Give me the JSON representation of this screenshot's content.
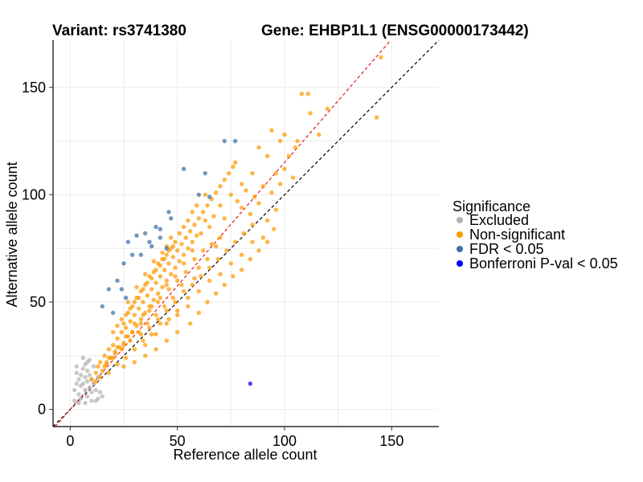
{
  "header": {
    "variant": "Variant: rs3741380",
    "gene": "Gene: EHBP1L1 (ENSG00000173442)"
  },
  "chart_data": {
    "type": "scatter",
    "xlabel": "Reference allele count",
    "ylabel": "Alternative allele count",
    "xlim": [
      -8,
      172
    ],
    "ylim": [
      -8,
      172
    ],
    "x_ticks": [
      0,
      50,
      100,
      150
    ],
    "y_ticks": [
      0,
      50,
      100,
      150
    ],
    "x_tick_labels": [
      "0",
      "50",
      "100",
      "150"
    ],
    "y_tick_labels": [
      "0",
      "50",
      "100",
      "150"
    ],
    "grid": true,
    "legend": {
      "title": "Significance",
      "position": "right",
      "entries": [
        {
          "label": "Excluded",
          "color": "#b3b3b3"
        },
        {
          "label": "Non-significant",
          "color": "#ff9900"
        },
        {
          "label": "FDR < 0.05",
          "color": "#3b6fa8"
        },
        {
          "label": "Bonferroni P-val < 0.05",
          "color": "#0000ff"
        }
      ]
    },
    "reference_lines": [
      {
        "kind": "identity",
        "slope": 1.0,
        "intercept": 0,
        "color": "#000000",
        "style": "dashed"
      },
      {
        "kind": "fit",
        "slope": 1.15,
        "intercept": 0,
        "color": "#e41a1c",
        "style": "dashed"
      }
    ],
    "series": [
      {
        "name": "Excluded",
        "color": "#b3b3b3",
        "points": [
          [
            2,
            9
          ],
          [
            3,
            12
          ],
          [
            3,
            17
          ],
          [
            4,
            7
          ],
          [
            4,
            14
          ],
          [
            5,
            11
          ],
          [
            5,
            16
          ],
          [
            5,
            5
          ],
          [
            6,
            12
          ],
          [
            6,
            19
          ],
          [
            7,
            9
          ],
          [
            7,
            15
          ],
          [
            7,
            21
          ],
          [
            8,
            6
          ],
          [
            8,
            13
          ],
          [
            8,
            18
          ],
          [
            9,
            10
          ],
          [
            9,
            16
          ],
          [
            9,
            23
          ],
          [
            10,
            8
          ],
          [
            10,
            14
          ],
          [
            11,
            12
          ],
          [
            11,
            20
          ],
          [
            12,
            9
          ],
          [
            13,
            5
          ],
          [
            13,
            15
          ],
          [
            14,
            8
          ],
          [
            15,
            6
          ],
          [
            3,
            20
          ],
          [
            6,
            24
          ],
          [
            8,
            22
          ],
          [
            4,
            3
          ],
          [
            10,
            4
          ],
          [
            12,
            4
          ],
          [
            7,
            3
          ],
          [
            2,
            4
          ]
        ]
      },
      {
        "name": "Non-significant",
        "color": "#ff9900",
        "points": [
          [
            10,
            14
          ],
          [
            12,
            17
          ],
          [
            13,
            20
          ],
          [
            14,
            22
          ],
          [
            15,
            18
          ],
          [
            16,
            25
          ],
          [
            17,
            21
          ],
          [
            18,
            28
          ],
          [
            19,
            24
          ],
          [
            20,
            30
          ],
          [
            21,
            27
          ],
          [
            22,
            33
          ],
          [
            23,
            29
          ],
          [
            24,
            36
          ],
          [
            25,
            31
          ],
          [
            26,
            38
          ],
          [
            27,
            34
          ],
          [
            28,
            41
          ],
          [
            29,
            36
          ],
          [
            30,
            44
          ],
          [
            31,
            39
          ],
          [
            32,
            47
          ],
          [
            33,
            42
          ],
          [
            34,
            50
          ],
          [
            35,
            45
          ],
          [
            36,
            53
          ],
          [
            37,
            48
          ],
          [
            38,
            56
          ],
          [
            39,
            51
          ],
          [
            40,
            59
          ],
          [
            41,
            54
          ],
          [
            42,
            62
          ],
          [
            43,
            57
          ],
          [
            44,
            65
          ],
          [
            45,
            60
          ],
          [
            46,
            68
          ],
          [
            47,
            63
          ],
          [
            48,
            71
          ],
          [
            49,
            66
          ],
          [
            50,
            74
          ],
          [
            51,
            69
          ],
          [
            52,
            77
          ],
          [
            53,
            72
          ],
          [
            54,
            80
          ],
          [
            55,
            75
          ],
          [
            56,
            83
          ],
          [
            57,
            78
          ],
          [
            58,
            86
          ],
          [
            59,
            81
          ],
          [
            60,
            89
          ],
          [
            62,
            92
          ],
          [
            64,
            95
          ],
          [
            66,
            98
          ],
          [
            68,
            101
          ],
          [
            70,
            104
          ],
          [
            72,
            107
          ],
          [
            74,
            110
          ],
          [
            76,
            113
          ],
          [
            78,
            97
          ],
          [
            80,
            94
          ],
          [
            82,
            102
          ],
          [
            84,
            91
          ],
          [
            86,
            99
          ],
          [
            88,
            96
          ],
          [
            90,
            104
          ],
          [
            92,
            88
          ],
          [
            94,
            101
          ],
          [
            96,
            93
          ],
          [
            98,
            105
          ],
          [
            100,
            112
          ],
          [
            102,
            118
          ],
          [
            104,
            108
          ],
          [
            106,
            125
          ],
          [
            108,
            147
          ],
          [
            111,
            147
          ],
          [
            112,
            138
          ],
          [
            116,
            128
          ],
          [
            120,
            140
          ],
          [
            145,
            164
          ],
          [
            143,
            136
          ],
          [
            88,
            122
          ],
          [
            94,
            130
          ],
          [
            96,
            110
          ],
          [
            105,
            122
          ],
          [
            100,
            128
          ],
          [
            77,
            115
          ],
          [
            72,
            89
          ],
          [
            66,
            77
          ],
          [
            64,
            70
          ],
          [
            60,
            66
          ],
          [
            58,
            61
          ],
          [
            55,
            52
          ],
          [
            52,
            58
          ],
          [
            50,
            46
          ],
          [
            48,
            52
          ],
          [
            46,
            42
          ],
          [
            44,
            48
          ],
          [
            42,
            40
          ],
          [
            40,
            44
          ],
          [
            38,
            35
          ],
          [
            36,
            40
          ],
          [
            34,
            32
          ],
          [
            32,
            36
          ],
          [
            30,
            28
          ],
          [
            28,
            32
          ],
          [
            26,
            24
          ],
          [
            24,
            28
          ],
          [
            22,
            21
          ],
          [
            20,
            24
          ],
          [
            18,
            17
          ],
          [
            16,
            20
          ],
          [
            14,
            15
          ],
          [
            12,
            13
          ],
          [
            25,
            40
          ],
          [
            27,
            45
          ],
          [
            29,
            48
          ],
          [
            31,
            52
          ],
          [
            33,
            55
          ],
          [
            35,
            58
          ],
          [
            37,
            62
          ],
          [
            39,
            64
          ],
          [
            41,
            68
          ],
          [
            43,
            70
          ],
          [
            45,
            72
          ],
          [
            47,
            75
          ],
          [
            49,
            78
          ],
          [
            51,
            82
          ],
          [
            53,
            85
          ],
          [
            20,
            36
          ],
          [
            22,
            39
          ],
          [
            24,
            42
          ],
          [
            26,
            44
          ],
          [
            28,
            47
          ],
          [
            30,
            50
          ],
          [
            32,
            52
          ],
          [
            34,
            56
          ],
          [
            36,
            59
          ],
          [
            38,
            61
          ],
          [
            40,
            65
          ],
          [
            42,
            67
          ],
          [
            44,
            70
          ],
          [
            46,
            74
          ],
          [
            48,
            76
          ],
          [
            35,
            30
          ],
          [
            40,
            35
          ],
          [
            45,
            40
          ],
          [
            50,
            44
          ],
          [
            55,
            48
          ],
          [
            60,
            55
          ],
          [
            65,
            60
          ],
          [
            70,
            63
          ],
          [
            75,
            68
          ],
          [
            80,
            72
          ],
          [
            85,
            78
          ],
          [
            90,
            80
          ],
          [
            95,
            84
          ],
          [
            70,
            80
          ],
          [
            68,
            76
          ],
          [
            62,
            74
          ],
          [
            58,
            70
          ],
          [
            54,
            64
          ],
          [
            50,
            60
          ],
          [
            46,
            56
          ],
          [
            42,
            52
          ],
          [
            38,
            48
          ],
          [
            34,
            44
          ],
          [
            30,
            40
          ],
          [
            26,
            34
          ],
          [
            22,
            29
          ],
          [
            18,
            24
          ],
          [
            65,
            85
          ],
          [
            67,
            90
          ],
          [
            63,
            88
          ],
          [
            61,
            82
          ],
          [
            57,
            74
          ],
          [
            53,
            68
          ],
          [
            49,
            62
          ],
          [
            45,
            58
          ],
          [
            41,
            50
          ],
          [
            37,
            46
          ],
          [
            33,
            40
          ],
          [
            29,
            36
          ],
          [
            25,
            30
          ],
          [
            21,
            26
          ],
          [
            17,
            22
          ],
          [
            33,
            35
          ],
          [
            37,
            38
          ],
          [
            41,
            42
          ],
          [
            45,
            46
          ],
          [
            49,
            50
          ],
          [
            53,
            55
          ],
          [
            57,
            58
          ],
          [
            61,
            62
          ],
          [
            65,
            66
          ],
          [
            69,
            70
          ],
          [
            73,
            74
          ],
          [
            77,
            78
          ],
          [
            81,
            82
          ],
          [
            85,
            86
          ],
          [
            47,
            80
          ],
          [
            45,
            76
          ],
          [
            43,
            73
          ],
          [
            39,
            69
          ],
          [
            35,
            63
          ],
          [
            31,
            57
          ],
          [
            27,
            50
          ],
          [
            55,
            88
          ],
          [
            57,
            92
          ],
          [
            59,
            95
          ],
          [
            63,
            100
          ],
          [
            70,
            95
          ],
          [
            75,
            100
          ],
          [
            80,
            105
          ],
          [
            85,
            110
          ],
          [
            92,
            118
          ],
          [
            98,
            125
          ],
          [
            56,
            40
          ],
          [
            60,
            45
          ],
          [
            64,
            50
          ],
          [
            68,
            54
          ],
          [
            72,
            58
          ],
          [
            76,
            62
          ],
          [
            80,
            65
          ],
          [
            84,
            70
          ],
          [
            88,
            74
          ],
          [
            92,
            78
          ],
          [
            35,
            25
          ],
          [
            40,
            28
          ],
          [
            45,
            32
          ],
          [
            50,
            36
          ],
          [
            30,
            22
          ],
          [
            25,
            20
          ]
        ]
      },
      {
        "name": "FDR < 0.05",
        "color": "#3b6fa8",
        "points": [
          [
            72,
            125
          ],
          [
            77,
            125
          ],
          [
            53,
            112
          ],
          [
            63,
            110
          ],
          [
            60,
            100
          ],
          [
            65,
            99
          ],
          [
            46,
            92
          ],
          [
            47,
            89
          ],
          [
            35,
            82
          ],
          [
            31,
            81
          ],
          [
            27,
            78
          ],
          [
            37,
            78
          ],
          [
            40,
            85
          ],
          [
            42,
            84
          ],
          [
            45,
            75
          ],
          [
            29,
            72
          ],
          [
            33,
            72
          ],
          [
            25,
            68
          ],
          [
            18,
            56
          ],
          [
            22,
            60
          ],
          [
            24,
            56
          ],
          [
            26,
            52
          ],
          [
            20,
            45
          ],
          [
            15,
            48
          ],
          [
            42,
            80
          ],
          [
            38,
            76
          ]
        ]
      },
      {
        "name": "Bonferroni P-val < 0.05",
        "color": "#0000ff",
        "points": [
          [
            84,
            12
          ]
        ]
      }
    ]
  }
}
